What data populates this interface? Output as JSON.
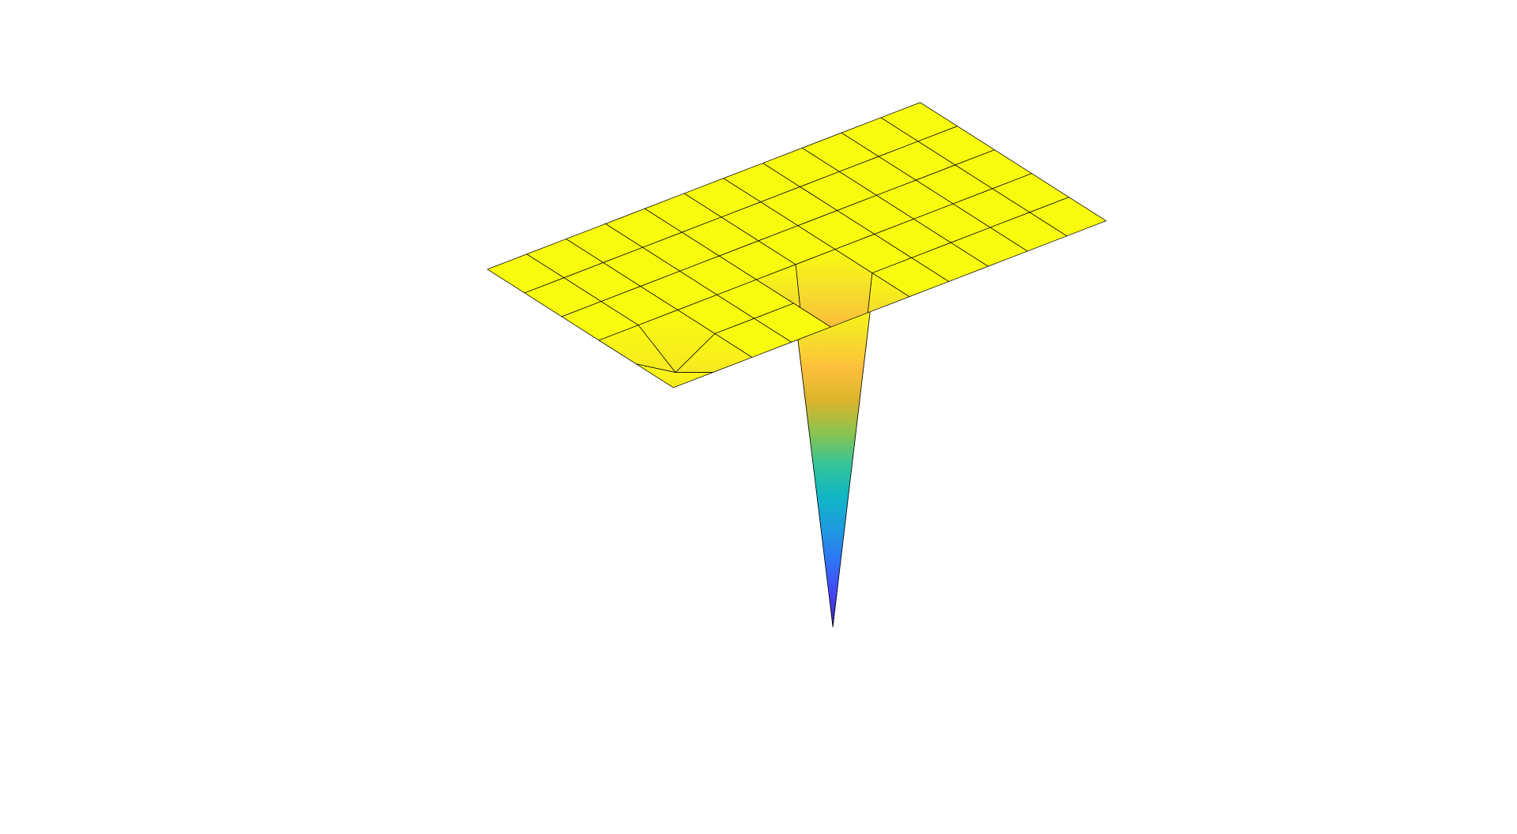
{
  "chart_data": {
    "type": "surface",
    "z": [
      [
        0,
        0,
        0,
        0,
        0,
        0,
        0,
        0,
        0,
        0,
        0,
        0
      ],
      [
        0,
        0,
        0,
        0,
        0,
        0,
        0,
        0,
        0,
        0,
        0,
        0
      ],
      [
        0,
        0,
        0,
        0,
        0,
        0,
        0,
        0,
        0,
        0,
        0,
        0
      ],
      [
        0,
        0,
        0,
        0,
        0,
        0,
        0,
        0,
        0,
        0,
        0,
        0
      ],
      [
        0,
        -0.7,
        0,
        0,
        0,
        -10,
        0,
        0,
        0,
        0,
        0,
        0
      ],
      [
        0,
        0,
        0,
        0,
        0,
        0,
        0,
        0,
        0,
        0,
        0,
        0
      ]
    ],
    "colormap": [
      "#3e26a8",
      "#4743f8",
      "#2f73f7",
      "#1e9ae0",
      "#10b6c6",
      "#33c49a",
      "#8cc34e",
      "#dcb42c",
      "#fdc03b",
      "#f5e02a",
      "#f9fb0e"
    ],
    "edgecolor": "#000000"
  }
}
